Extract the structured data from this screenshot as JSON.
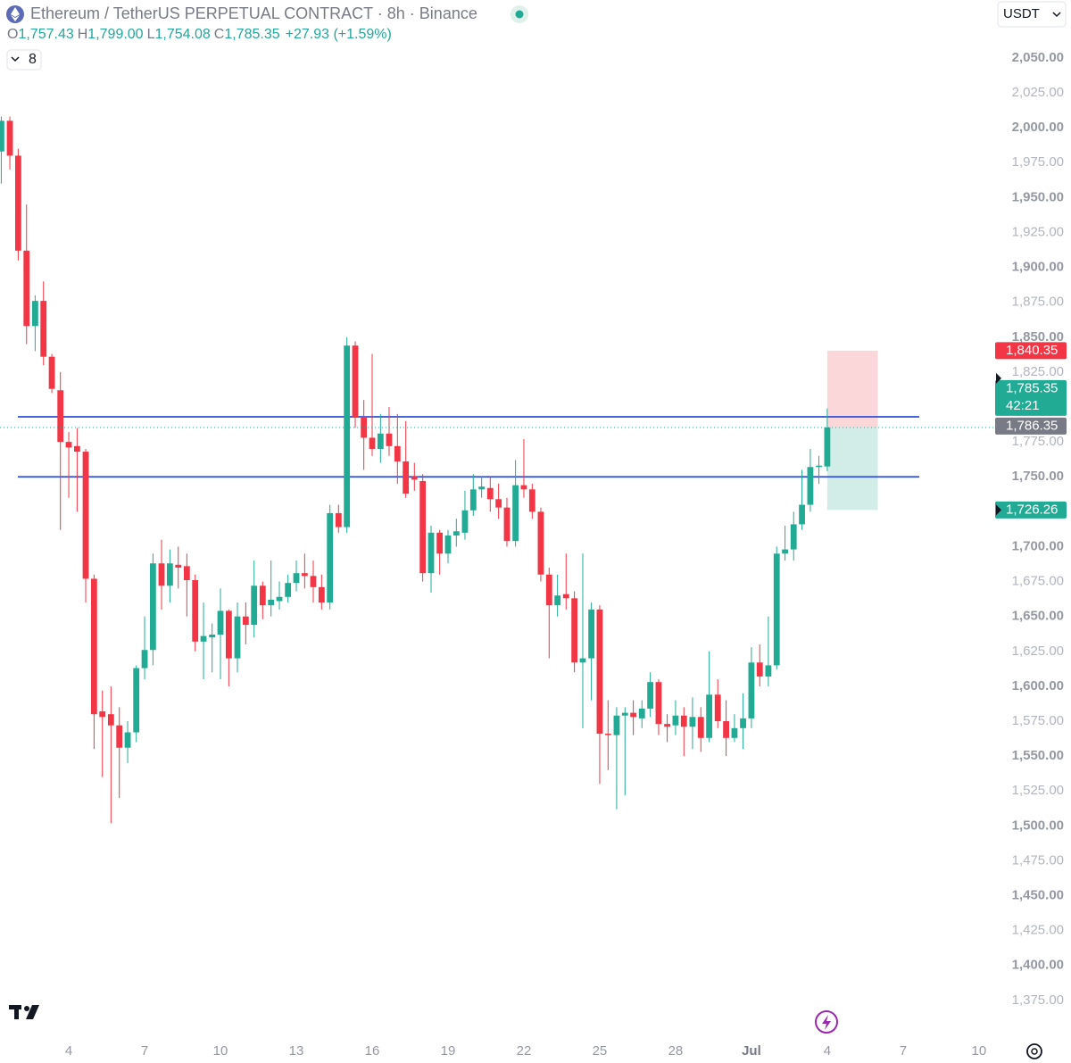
{
  "chart_data": {
    "type": "candlestick",
    "title": "Ethereum / TetherUS PERPETUAL CONTRACT · 8h · Binance",
    "currency": "USDT",
    "indicator_count": "8",
    "ohlc_legend": [
      {
        "key": "O",
        "value": "1,757.43"
      },
      {
        "key": "H",
        "value": "1,799.00"
      },
      {
        "key": "L",
        "value": "1,754.08"
      },
      {
        "key": "C",
        "value": "1,785.35"
      }
    ],
    "change": "+27.93 (+1.59%)",
    "up_color": "#22ab94",
    "down_color": "#f23645",
    "x": [
      1.33,
      1.67,
      2,
      2.33,
      2.67,
      3,
      3.33,
      3.67,
      4,
      4.33,
      4.67,
      5,
      5.33,
      5.67,
      6,
      6.33,
      6.67,
      7,
      7.33,
      7.67,
      8,
      8.33,
      8.67,
      9,
      9.33,
      9.67,
      10,
      10.33,
      10.67,
      11,
      11.33,
      11.67,
      12,
      12.33,
      12.67,
      13,
      13.33,
      13.67,
      14,
      14.33,
      14.67,
      15,
      15.33,
      15.67,
      16,
      16.33,
      16.67,
      17,
      17.33,
      17.67,
      18,
      18.33,
      18.67,
      19,
      19.33,
      19.67,
      20,
      20.33,
      20.67,
      21,
      21.33,
      21.67,
      22,
      22.33,
      22.67,
      23,
      23.33,
      23.67,
      24,
      24.33,
      24.67,
      25,
      25.33,
      25.67,
      26,
      26.33,
      26.67,
      27,
      27.33,
      27.67,
      28,
      28.33,
      28.67,
      29,
      29.33,
      29.67,
      30,
      30.33,
      30.67,
      31,
      31.33,
      31.67,
      32,
      32.33,
      32.67,
      33,
      33.33,
      33.67,
      34
    ],
    "open": [
      1983,
      2005,
      1980,
      1912,
      1858,
      1876,
      1836,
      1812,
      1775,
      1772,
      1768,
      1677,
      1582,
      1580,
      1572,
      1556,
      1567,
      1613,
      1626,
      1688,
      1672,
      1687,
      1686,
      1676,
      1632,
      1635,
      1637,
      1654,
      1620,
      1650,
      1644,
      1672,
      1658,
      1661,
      1664,
      1674,
      1681,
      1679,
      1671,
      1660,
      1724,
      1714,
      1844,
      1793,
      1778,
      1770,
      1781,
      1772,
      1761,
      1750,
      1747,
      1681,
      1710,
      1695,
      1708,
      1710,
      1726,
      1741,
      1742,
      1734,
      1728,
      1704,
      1744,
      1741,
      1725,
      1680,
      1658,
      1666,
      1663,
      1617,
      1620,
      1655,
      1566,
      1565,
      1579,
      1581,
      1577,
      1584,
      1603,
      1573,
      1572,
      1579,
      1571,
      1578,
      1563,
      1594,
      1575,
      1563,
      1570,
      1577,
      1617,
      1607,
      1615,
      1695,
      1698,
      1716,
      1730,
      1757,
      1757.43
    ],
    "high": [
      2008,
      2008,
      1985,
      1945,
      1880,
      1890,
      1838,
      1825,
      1782,
      1785,
      1770,
      1680,
      1597,
      1600,
      1585,
      1575,
      1615,
      1650,
      1695,
      1705,
      1698,
      1700,
      1695,
      1680,
      1660,
      1645,
      1670,
      1655,
      1660,
      1660,
      1690,
      1675,
      1690,
      1675,
      1680,
      1690,
      1695,
      1690,
      1680,
      1730,
      1730,
      1850,
      1847,
      1805,
      1838,
      1795,
      1800,
      1795,
      1790,
      1760,
      1752,
      1715,
      1712,
      1712,
      1720,
      1740,
      1752,
      1750,
      1750,
      1745,
      1735,
      1762,
      1777,
      1745,
      1728,
      1685,
      1680,
      1695,
      1668,
      1695,
      1660,
      1658,
      1590,
      1585,
      1585,
      1590,
      1590,
      1610,
      1605,
      1580,
      1590,
      1585,
      1592,
      1585,
      1625,
      1605,
      1590,
      1580,
      1595,
      1628,
      1630,
      1650,
      1700,
      1715,
      1725,
      1755,
      1770,
      1765,
      1799
    ],
    "low": [
      1960,
      1970,
      1905,
      1845,
      1840,
      1830,
      1810,
      1712,
      1735,
      1725,
      1660,
      1555,
      1535,
      1502,
      1520,
      1545,
      1560,
      1605,
      1615,
      1655,
      1660,
      1670,
      1650,
      1625,
      1605,
      1610,
      1605,
      1600,
      1610,
      1630,
      1635,
      1648,
      1650,
      1655,
      1660,
      1668,
      1670,
      1660,
      1655,
      1655,
      1710,
      1710,
      1785,
      1755,
      1765,
      1760,
      1765,
      1745,
      1735,
      1740,
      1675,
      1667,
      1680,
      1688,
      1700,
      1705,
      1722,
      1735,
      1725,
      1720,
      1700,
      1700,
      1735,
      1720,
      1675,
      1620,
      1650,
      1655,
      1610,
      1570,
      1590,
      1530,
      1540,
      1512,
      1522,
      1565,
      1570,
      1578,
      1565,
      1560,
      1565,
      1550,
      1555,
      1553,
      1560,
      1570,
      1550,
      1560,
      1555,
      1570,
      1600,
      1600,
      1612,
      1690,
      1690,
      1712,
      1725,
      1745,
      1754.08
    ],
    "close": [
      2005,
      1980,
      1912,
      1858,
      1876,
      1836,
      1813,
      1775,
      1771,
      1768,
      1677,
      1580,
      1578,
      1572,
      1556,
      1567,
      1613,
      1626,
      1688,
      1672,
      1688,
      1685,
      1676,
      1632,
      1636,
      1637,
      1654,
      1620,
      1650,
      1644,
      1672,
      1658,
      1662,
      1664,
      1674,
      1681,
      1679,
      1671,
      1660,
      1724,
      1714,
      1844,
      1793,
      1778,
      1770,
      1781,
      1772,
      1761,
      1738,
      1748,
      1681,
      1710,
      1695,
      1708,
      1711,
      1726,
      1741,
      1743,
      1734,
      1728,
      1704,
      1744,
      1741,
      1725,
      1680,
      1658,
      1665,
      1663,
      1617,
      1620,
      1655,
      1566,
      1565,
      1579,
      1581,
      1578,
      1584,
      1603,
      1573,
      1571,
      1579,
      1571,
      1578,
      1563,
      1594,
      1575,
      1563,
      1570,
      1577,
      1617,
      1607,
      1615,
      1695,
      1698,
      1716,
      1730,
      1757,
      1758,
      1785.35
    ],
    "xlim": [
      1.28,
      40.64
    ],
    "xticks": [
      4,
      7,
      10,
      13,
      16,
      19,
      22,
      25,
      28,
      {
        "value": 31,
        "label": "Jul"
      },
      {
        "value": 34,
        "label": "4"
      },
      {
        "value": 37,
        "label": "7"
      },
      {
        "value": 40,
        "label": "10"
      }
    ],
    "ylim": [
      1350,
      2091.5
    ],
    "yticks": [
      {
        "value": 2050,
        "label": "2,050.00"
      },
      {
        "value": 2025,
        "label": "2,025.00"
      },
      {
        "value": 2000,
        "label": "2,000.00"
      },
      {
        "value": 1975,
        "label": "1,975.00"
      },
      {
        "value": 1950,
        "label": "1,950.00"
      },
      {
        "value": 1925,
        "label": "1,925.00"
      },
      {
        "value": 1900,
        "label": "1,900.00"
      },
      {
        "value": 1875,
        "label": "1,875.00"
      },
      {
        "value": 1850,
        "label": "1,850.00"
      },
      {
        "value": 1825,
        "label": "1,825.00"
      },
      {
        "value": 1800,
        "label": "1,800.00"
      },
      {
        "value": 1775,
        "label": "1,775.00"
      },
      {
        "value": 1750,
        "label": "1,750.00"
      },
      {
        "value": 1725,
        "label": "1,725.00"
      },
      {
        "value": 1700,
        "label": "1,700.00"
      },
      {
        "value": 1675,
        "label": "1,675.00"
      },
      {
        "value": 1650,
        "label": "1,650.00"
      },
      {
        "value": 1625,
        "label": "1,625.00"
      },
      {
        "value": 1600,
        "label": "1,600.00"
      },
      {
        "value": 1575,
        "label": "1,575.00"
      },
      {
        "value": 1550,
        "label": "1,550.00"
      },
      {
        "value": 1525,
        "label": "1,525.00"
      },
      {
        "value": 1500,
        "label": "1,500.00"
      },
      {
        "value": 1475,
        "label": "1,475.00"
      },
      {
        "value": 1450,
        "label": "1,450.00"
      },
      {
        "value": 1425,
        "label": "1,425.00"
      },
      {
        "value": 1400,
        "label": "1,400.00"
      },
      {
        "value": 1375,
        "label": "1,375.00"
      }
    ],
    "grid": false,
    "lines": [
      {
        "value": 1793,
        "color": "#2f4fd8"
      },
      {
        "value": 1750,
        "color": "#2f4fd8"
      }
    ],
    "position": {
      "x": [
        34,
        36
      ],
      "entry": 1785.35,
      "stop": 1840.35,
      "target": 1726.26
    },
    "price_labels": [
      {
        "value": 1840.35,
        "label": "1,840.35",
        "color": "#f23645"
      },
      {
        "value": 1786.35,
        "label": "1,786.35",
        "color": "#787b86"
      },
      {
        "value": 1785.35,
        "label": "1,785.35",
        "color": "#22ab94",
        "countdown": "42:21"
      },
      {
        "value": 1726.26,
        "label": "1,726.26",
        "color": "#22ab94"
      }
    ]
  }
}
